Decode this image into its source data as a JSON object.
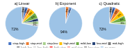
{
  "chart_data": [
    {
      "type": "pie",
      "title": "a) Linear",
      "values": [
        3,
        3,
        3,
        5,
        6,
        3,
        3,
        2,
        72
      ],
      "value_labels": [
        "3%",
        "3%",
        "3%",
        "5%",
        "6%",
        "3%",
        "3%",
        "2%",
        "72%"
      ],
      "colors": [
        "#7F7F7F",
        "#4472C4",
        "#ED7D31",
        "#FFC000",
        "#70AD47",
        "#264478",
        "#A9D18E",
        "#C9C9C9",
        "#9DC3E6"
      ],
      "data_labels": true
    },
    {
      "type": "pie",
      "title": "b) Exponent",
      "values": [
        3,
        1,
        2,
        94
      ],
      "value_labels": [
        "3%",
        null,
        "2%",
        "94%"
      ],
      "colors": [
        "#ED7D31",
        "#264478",
        "#4472C4",
        "#9DC3E6"
      ],
      "data_labels": true
    },
    {
      "type": "pie",
      "title": "c) Quadratic",
      "values": [
        3,
        3,
        5,
        6,
        6,
        3,
        72
      ],
      "value_labels": [
        "3%",
        "3%",
        "5%",
        "6%",
        "6%",
        "3%",
        "72%"
      ],
      "colors": [
        "#7F7F7F",
        "#4472C4",
        "#ED7D31",
        "#FFC000",
        "#70AD47",
        "#A9D18E",
        "#9DC3E6"
      ],
      "data_labels": true
    },
    {
      "type": "legend",
      "legend": "bottom",
      "series": [
        {
          "name": "stop-high",
          "color": "#4472C4"
        },
        {
          "name": "stop-mid",
          "color": "#ED7D31"
        },
        {
          "name": "stop-low",
          "color": "#A9D18E"
        },
        {
          "name": "high-mid",
          "color": "#FFC000"
        },
        {
          "name": "mild-low",
          "color": "#70AD47"
        },
        {
          "name": "low-mid",
          "color": "#264478"
        },
        {
          "name": "mid-high",
          "color": "#7F7F7F"
        },
        {
          "name": "high-low",
          "color": "#636363"
        },
        {
          "name": "low-high",
          "color": "#C9C9C9"
        },
        {
          "name": "high-stop",
          "color": "#FF0000"
        },
        {
          "name": "mid-stop",
          "color": "#FF7F7F"
        },
        {
          "name": "low-stop",
          "color": "#808080"
        },
        {
          "name": "no-error",
          "color": "#9DC3E6"
        }
      ]
    }
  ]
}
